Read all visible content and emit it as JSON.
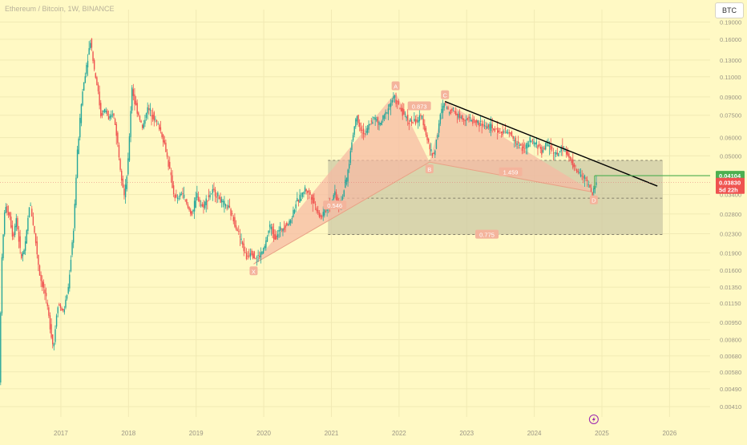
{
  "header": {
    "title": "Ethereum / Bitcoin, 1W, BINANCE",
    "currency": "BTC"
  },
  "price_tags": {
    "last": "0.04104",
    "current": "0.03830",
    "countdown": "5d 22h"
  },
  "pattern_labels": {
    "X": "X",
    "A": "A",
    "B": "B",
    "C": "C",
    "D": "D"
  },
  "ratio_labels": {
    "xab": "0.546",
    "abc": "0.873",
    "bcd": "1.459",
    "xad": "0.775"
  },
  "colors": {
    "background": "#fff9c4",
    "up": "#26a69a",
    "down": "#ef5350",
    "pattern_fill": "#f6b8a2",
    "box_fill": "#ccc8a6",
    "trendline": "#000000",
    "level_line": "#4caf50"
  },
  "chart_data": {
    "type": "candlestick",
    "symbol": "ETHBTC",
    "interval": "1W",
    "exchange": "BINANCE",
    "y_scale": "log",
    "ylim": [
      0.0037,
      0.215
    ],
    "xlim": [
      2016.1,
      2026.6
    ],
    "y_ticks": [
      0.19,
      0.16,
      0.13,
      0.11,
      0.09,
      0.075,
      0.06,
      0.05,
      0.041,
      0.034,
      0.028,
      0.023,
      0.019,
      0.016,
      0.0135,
      0.0115,
      0.0095,
      0.008,
      0.0068,
      0.0058,
      0.0049,
      0.0041
    ],
    "y_tick_labels": [
      "0.19000",
      "0.16000",
      "0.13000",
      "0.11000",
      "0.09000",
      "0.07500",
      "0.06000",
      "0.05000",
      "0.04100",
      "0.03400",
      "0.02800",
      "0.02300",
      "0.01900",
      "0.01600",
      "0.01350",
      "0.01150",
      "0.00950",
      "0.00800",
      "0.00680",
      "0.00580",
      "0.00490",
      "0.00410"
    ],
    "x_ticks": [
      2017,
      2018,
      2019,
      2020,
      2021,
      2022,
      2023,
      2024,
      2025,
      2026
    ],
    "x_tick_labels": [
      "2017",
      "2018",
      "2019",
      "2020",
      "2021",
      "2022",
      "2023",
      "2024",
      "2025",
      "2026"
    ],
    "price_path": [
      [
        2016.1,
        0.0052
      ],
      [
        2016.13,
        0.016
      ],
      [
        2016.18,
        0.03
      ],
      [
        2016.25,
        0.028
      ],
      [
        2016.3,
        0.022
      ],
      [
        2016.35,
        0.027
      ],
      [
        2016.42,
        0.018
      ],
      [
        2016.48,
        0.02
      ],
      [
        2016.55,
        0.032
      ],
      [
        2016.63,
        0.022
      ],
      [
        2016.7,
        0.015
      ],
      [
        2016.78,
        0.0125
      ],
      [
        2016.85,
        0.0092
      ],
      [
        2016.9,
        0.0073
      ],
      [
        2016.96,
        0.0115
      ],
      [
        2017.05,
        0.0105
      ],
      [
        2017.12,
        0.0135
      ],
      [
        2017.2,
        0.025
      ],
      [
        2017.25,
        0.05
      ],
      [
        2017.32,
        0.09
      ],
      [
        2017.38,
        0.12
      ],
      [
        2017.45,
        0.16
      ],
      [
        2017.5,
        0.12
      ],
      [
        2017.55,
        0.1
      ],
      [
        2017.6,
        0.075
      ],
      [
        2017.67,
        0.08
      ],
      [
        2017.72,
        0.07
      ],
      [
        2017.78,
        0.078
      ],
      [
        2017.84,
        0.06
      ],
      [
        2017.88,
        0.047
      ],
      [
        2017.95,
        0.033
      ],
      [
        2018.0,
        0.045
      ],
      [
        2018.06,
        0.1
      ],
      [
        2018.1,
        0.085
      ],
      [
        2018.18,
        0.072
      ],
      [
        2018.22,
        0.065
      ],
      [
        2018.28,
        0.08
      ],
      [
        2018.34,
        0.078
      ],
      [
        2018.4,
        0.072
      ],
      [
        2018.48,
        0.065
      ],
      [
        2018.55,
        0.055
      ],
      [
        2018.62,
        0.043
      ],
      [
        2018.68,
        0.034
      ],
      [
        2018.73,
        0.032
      ],
      [
        2018.8,
        0.035
      ],
      [
        2018.88,
        0.03
      ],
      [
        2018.95,
        0.028
      ],
      [
        2019.02,
        0.034
      ],
      [
        2019.1,
        0.03
      ],
      [
        2019.18,
        0.033
      ],
      [
        2019.25,
        0.035
      ],
      [
        2019.32,
        0.034
      ],
      [
        2019.4,
        0.031
      ],
      [
        2019.48,
        0.03
      ],
      [
        2019.55,
        0.027
      ],
      [
        2019.62,
        0.024
      ],
      [
        2019.7,
        0.0205
      ],
      [
        2019.75,
        0.018
      ],
      [
        2019.82,
        0.0195
      ],
      [
        2019.88,
        0.018
      ],
      [
        2019.95,
        0.0185
      ],
      [
        2020.02,
        0.02
      ],
      [
        2020.1,
        0.025
      ],
      [
        2020.17,
        0.022
      ],
      [
        2020.25,
        0.024
      ],
      [
        2020.32,
        0.025
      ],
      [
        2020.4,
        0.026
      ],
      [
        2020.48,
        0.031
      ],
      [
        2020.55,
        0.033
      ],
      [
        2020.62,
        0.036
      ],
      [
        2020.7,
        0.034
      ],
      [
        2020.78,
        0.03
      ],
      [
        2020.85,
        0.027
      ],
      [
        2020.92,
        0.029
      ],
      [
        2021.0,
        0.031
      ],
      [
        2021.06,
        0.035
      ],
      [
        2021.12,
        0.03
      ],
      [
        2021.18,
        0.034
      ],
      [
        2021.25,
        0.042
      ],
      [
        2021.32,
        0.06
      ],
      [
        2021.38,
        0.075
      ],
      [
        2021.45,
        0.065
      ],
      [
        2021.52,
        0.062
      ],
      [
        2021.58,
        0.07
      ],
      [
        2021.65,
        0.073
      ],
      [
        2021.72,
        0.068
      ],
      [
        2021.8,
        0.075
      ],
      [
        2021.88,
        0.085
      ],
      [
        2021.94,
        0.09
      ],
      [
        2022.0,
        0.082
      ],
      [
        2022.06,
        0.077
      ],
      [
        2022.14,
        0.072
      ],
      [
        2022.2,
        0.07
      ],
      [
        2022.28,
        0.071
      ],
      [
        2022.35,
        0.074
      ],
      [
        2022.42,
        0.06
      ],
      [
        2022.48,
        0.052
      ],
      [
        2022.52,
        0.05
      ],
      [
        2022.57,
        0.06
      ],
      [
        2022.62,
        0.075
      ],
      [
        2022.68,
        0.085
      ],
      [
        2022.74,
        0.078
      ],
      [
        2022.8,
        0.08
      ],
      [
        2022.88,
        0.075
      ],
      [
        2022.95,
        0.073
      ],
      [
        2023.05,
        0.072
      ],
      [
        2023.15,
        0.07
      ],
      [
        2023.25,
        0.068
      ],
      [
        2023.35,
        0.067
      ],
      [
        2023.45,
        0.064
      ],
      [
        2023.55,
        0.064
      ],
      [
        2023.65,
        0.062
      ],
      [
        2023.72,
        0.058
      ],
      [
        2023.8,
        0.055
      ],
      [
        2023.88,
        0.054
      ],
      [
        2023.95,
        0.058
      ],
      [
        2024.05,
        0.056
      ],
      [
        2024.12,
        0.052
      ],
      [
        2024.2,
        0.057
      ],
      [
        2024.28,
        0.053
      ],
      [
        2024.35,
        0.05
      ],
      [
        2024.42,
        0.055
      ],
      [
        2024.48,
        0.052
      ],
      [
        2024.55,
        0.047
      ],
      [
        2024.62,
        0.044
      ],
      [
        2024.7,
        0.041
      ],
      [
        2024.76,
        0.04
      ],
      [
        2024.82,
        0.037
      ],
      [
        2024.86,
        0.034
      ],
      [
        2024.88,
        0.035
      ],
      [
        2024.92,
        0.038
      ]
    ],
    "pattern": {
      "X": [
        2019.85,
        0.017
      ],
      "A": [
        2021.95,
        0.094
      ],
      "B": [
        2022.45,
        0.047
      ],
      "C": [
        2022.68,
        0.086
      ],
      "D": [
        2024.88,
        0.0348
      ]
    },
    "ratios": {
      "XAB": 0.546,
      "ABC": 0.873,
      "BCD": 1.459,
      "XAD": 0.775
    },
    "trendline": [
      [
        2022.68,
        0.086
      ],
      [
        2025.82,
        0.037
      ]
    ],
    "box": {
      "x_range": [
        2020.95,
        2025.9
      ],
      "price_range": [
        0.0228,
        0.0478
      ]
    },
    "dashed_levels": [
      0.0478,
      0.0328,
      0.0228
    ],
    "last_value": 0.04104,
    "current_value": 0.0383
  }
}
